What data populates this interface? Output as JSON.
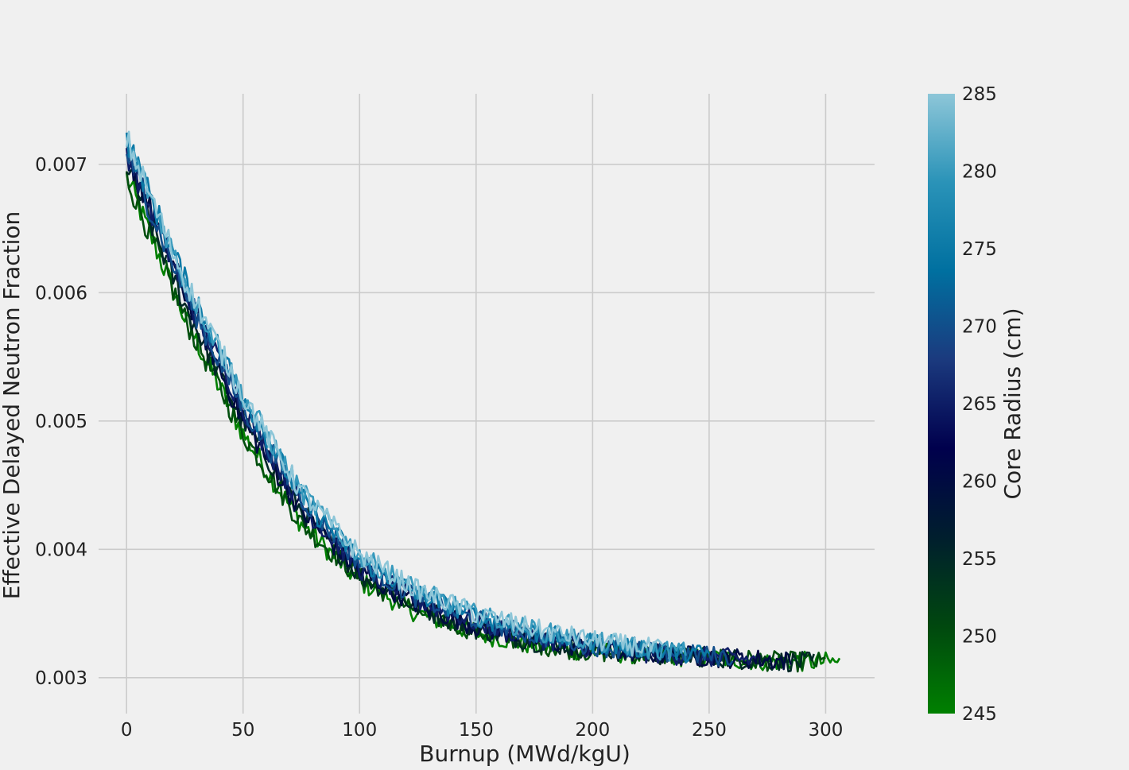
{
  "chart_data": {
    "type": "line",
    "xlabel": "Burnup (MWd/kgU)",
    "ylabel": "Effective Delayed Neutron Fraction",
    "xlim": [
      -12,
      321
    ],
    "ylim": [
      0.00272,
      0.00755
    ],
    "xticks": [
      0,
      50,
      100,
      150,
      200,
      250,
      300
    ],
    "yticks": [
      0.003,
      0.004,
      0.005,
      0.006,
      0.007
    ],
    "xtick_labels": [
      "0",
      "50",
      "100",
      "150",
      "200",
      "250",
      "300"
    ],
    "ytick_labels": [
      "0.003",
      "0.004",
      "0.005",
      "0.006",
      "0.007"
    ],
    "grid": true,
    "colorbar": {
      "label": "Core Radius (cm)",
      "min": 245,
      "max": 285,
      "ticks": [
        245,
        250,
        255,
        260,
        265,
        270,
        275,
        280,
        285
      ],
      "tick_labels": [
        "245",
        "250",
        "255",
        "260",
        "265",
        "270",
        "275",
        "280",
        "285"
      ],
      "colormap": [
        "#008000",
        "#00470f",
        "#001e2e",
        "#00004d",
        "#1b3a7e",
        "#0070a0",
        "#2a93b8",
        "#8dc6d8"
      ]
    },
    "series": [
      {
        "radius": 245,
        "x": [
          0,
          25,
          50,
          75,
          100,
          125,
          150,
          175,
          200,
          225,
          250,
          275,
          306
        ],
        "y": [
          0.0069,
          0.0058,
          0.0049,
          0.0042,
          0.00375,
          0.0035,
          0.00335,
          0.00325,
          0.0032,
          0.00318,
          0.00315,
          0.00313,
          0.00312
        ]
      },
      {
        "radius": 250,
        "x": [
          0,
          25,
          50,
          75,
          100,
          125,
          150,
          175,
          200,
          225,
          250,
          275,
          300
        ],
        "y": [
          0.0069,
          0.0058,
          0.0049,
          0.0042,
          0.00378,
          0.00352,
          0.00336,
          0.00326,
          0.0032,
          0.00318,
          0.00316,
          0.00313,
          0.00312
        ]
      },
      {
        "radius": 255,
        "x": [
          0,
          25,
          50,
          75,
          100,
          125,
          150,
          175,
          200,
          225,
          250,
          275,
          295
        ],
        "y": [
          0.007,
          0.0059,
          0.005,
          0.0043,
          0.0038,
          0.00355,
          0.00338,
          0.00328,
          0.00322,
          0.00318,
          0.00316,
          0.00313,
          0.00312
        ]
      },
      {
        "radius": 260,
        "x": [
          0,
          25,
          50,
          75,
          100,
          125,
          150,
          175,
          200,
          225,
          250,
          275,
          285
        ],
        "y": [
          0.0071,
          0.006,
          0.005,
          0.0043,
          0.00382,
          0.00357,
          0.0034,
          0.0033,
          0.00322,
          0.00319,
          0.00316,
          0.00314,
          0.00313
        ]
      },
      {
        "radius": 265,
        "x": [
          0,
          25,
          50,
          75,
          100,
          125,
          150,
          175,
          200,
          225,
          250,
          270
        ],
        "y": [
          0.0071,
          0.006,
          0.0051,
          0.00435,
          0.00385,
          0.0036,
          0.00343,
          0.00331,
          0.00323,
          0.00319,
          0.00316,
          0.00314
        ]
      },
      {
        "radius": 270,
        "x": [
          0,
          25,
          50,
          75,
          100,
          125,
          150,
          175,
          200,
          225,
          250,
          260
        ],
        "y": [
          0.0071,
          0.006,
          0.0051,
          0.0044,
          0.0039,
          0.00362,
          0.00345,
          0.00333,
          0.00325,
          0.0032,
          0.00317,
          0.00316
        ]
      },
      {
        "radius": 275,
        "x": [
          0,
          25,
          50,
          75,
          100,
          125,
          150,
          175,
          200,
          225,
          250
        ],
        "y": [
          0.0072,
          0.0061,
          0.0052,
          0.0044,
          0.00392,
          0.00365,
          0.00348,
          0.00335,
          0.00327,
          0.00322,
          0.00318
        ]
      },
      {
        "radius": 280,
        "x": [
          0,
          25,
          50,
          75,
          100,
          125,
          150,
          175,
          200,
          225,
          240
        ],
        "y": [
          0.0072,
          0.0061,
          0.0052,
          0.00445,
          0.00395,
          0.00368,
          0.00349,
          0.00337,
          0.00328,
          0.00322,
          0.0032
        ]
      },
      {
        "radius": 285,
        "x": [
          0,
          25,
          50,
          75,
          100,
          125,
          150,
          175,
          200,
          225,
          230
        ],
        "y": [
          0.0072,
          0.0061,
          0.0052,
          0.00445,
          0.00396,
          0.00368,
          0.0035,
          0.00338,
          0.00329,
          0.00323,
          0.00322
        ]
      }
    ]
  }
}
